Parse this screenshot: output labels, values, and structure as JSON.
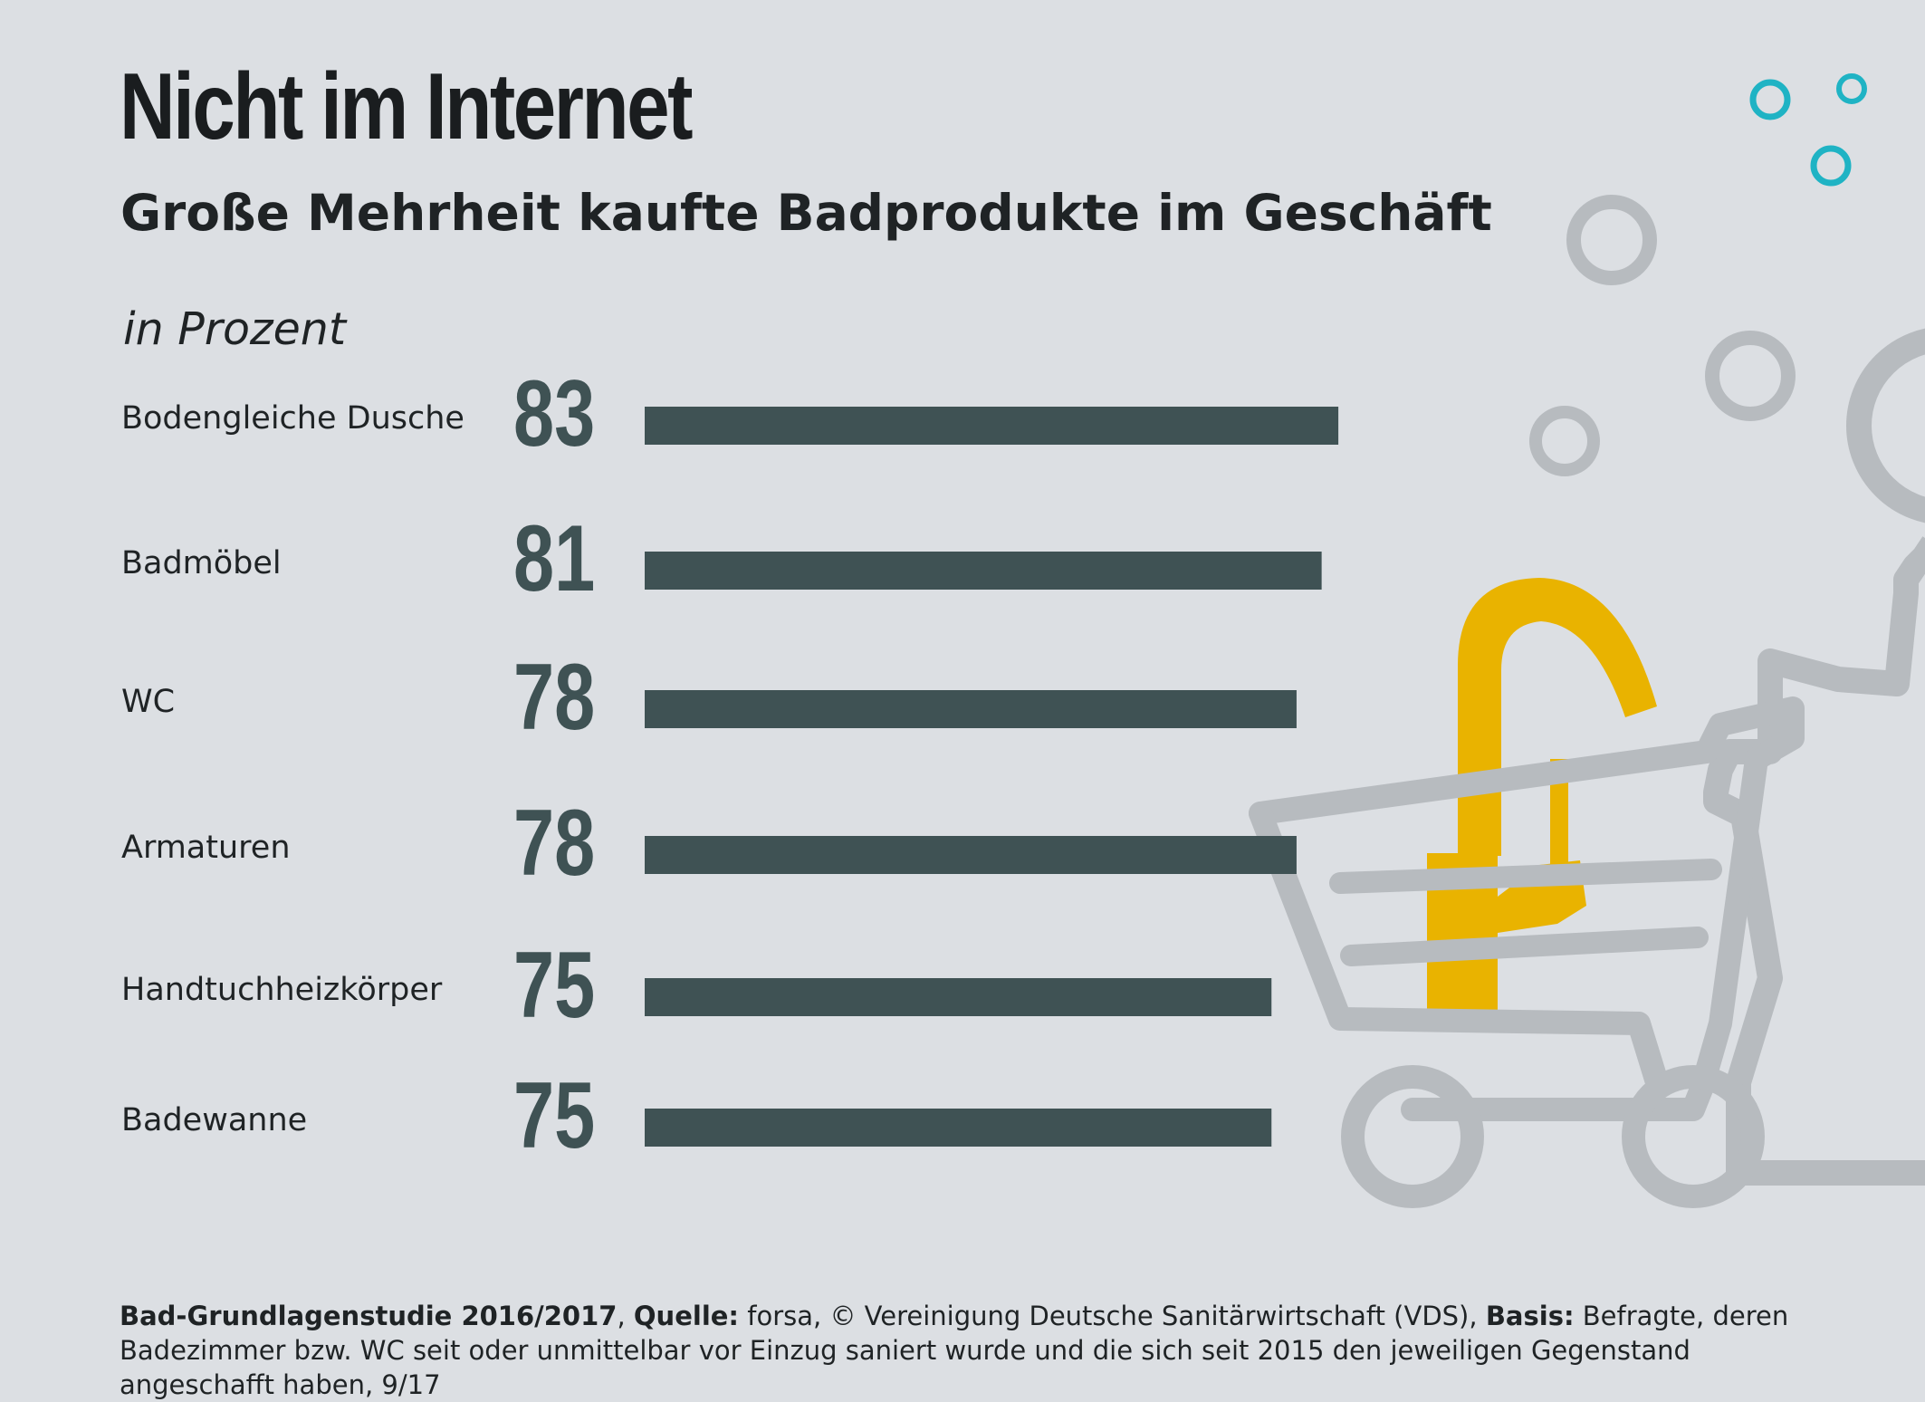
{
  "chart_data": {
    "type": "bar",
    "orientation": "horizontal",
    "title": "Nicht im Internet",
    "subtitle": "Große Mehrheit kaufte Badprodukte im Geschäft",
    "unit_label": "in Prozent",
    "categories": [
      "Bodengleiche Dusche",
      "Badmöbel",
      "WC",
      "Armaturen",
      "Handtuchheizkörper",
      "Badewanne"
    ],
    "values": [
      83,
      81,
      78,
      78,
      75,
      75
    ],
    "value_labels": [
      "83",
      "81",
      "78",
      "78",
      "75",
      "75"
    ],
    "xlim": [
      0,
      100
    ],
    "grid": false,
    "legend": "none",
    "bar_color": "#3f5254"
  },
  "footer": {
    "study_label": "Bad-Grundlagenstudie 2016/2017",
    "sep1": ", ",
    "source_label": "Quelle:",
    "source_text": " forsa, © Vereinigung Deutsche Sanitärwirtschaft (VDS), ",
    "basis_label": "Basis:",
    "basis_text": " Befragte, deren Badezimmer bzw. WC seit oder unmittelbar vor Einzug saniert wurde und die sich seit 2015 den jeweiligen Gegenstand angeschafft haben, 9/17"
  },
  "colors": {
    "background": "#dcdfe3",
    "illustration_gray": "#b7bbbf",
    "faucet_yellow": "#e9b300",
    "bubble_teal": "#1fb3c4"
  },
  "illustration": {
    "icons": [
      "shopping-cart-icon",
      "person-icon",
      "faucet-icon",
      "bubble-icon"
    ]
  }
}
